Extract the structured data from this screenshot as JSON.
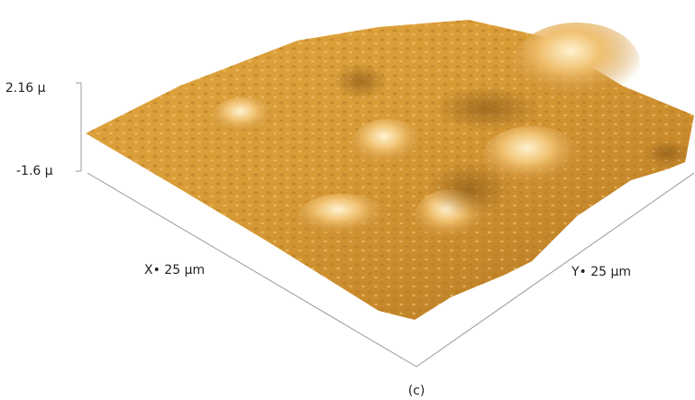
{
  "axis_labels": {
    "z_max": "2.16 µ",
    "z_min": "-1.6 µ",
    "x": "X• 25 µm",
    "y": "Y• 25 µm"
  },
  "caption": "(c)"
}
